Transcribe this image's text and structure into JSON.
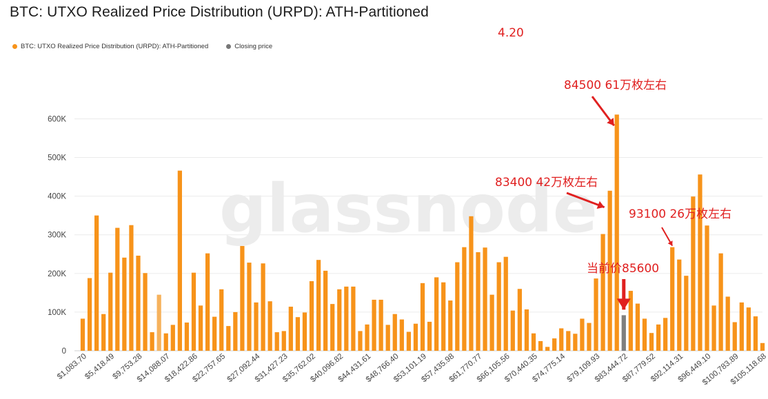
{
  "page": {
    "title": "BTC: UTXO Realized Price Distribution (URPD): ATH-Partitioned",
    "watermark": "glassnode"
  },
  "legend": [
    {
      "label": "BTC: UTXO Realized Price Distribution (URPD): ATH-Partitioned",
      "color": "#f7931a"
    },
    {
      "label": "Closing price",
      "color": "#777777"
    }
  ],
  "annotations": [
    {
      "text": "4.20"
    },
    {
      "text": "84500 61万枚左右"
    },
    {
      "text": "83400 42万枚左右"
    },
    {
      "text": "93100 26万枚左右"
    },
    {
      "text": "当前价85600"
    }
  ],
  "chart_data": {
    "type": "bar",
    "title": "BTC: UTXO Realized Price Distribution (URPD): ATH-Partitioned",
    "ylim": [
      0,
      640000
    ],
    "y_ticks": [
      0,
      100000,
      200000,
      300000,
      400000,
      500000,
      600000
    ],
    "y_tick_labels": [
      "0",
      "100K",
      "200K",
      "300K",
      "400K",
      "500K",
      "600K"
    ],
    "x_tick_labels": [
      "$1,083.70",
      "$5,418.49",
      "$9,753.28",
      "$14,088.07",
      "$18,422.86",
      "$22,757.65",
      "$27,092.44",
      "$31,427.23",
      "$35,762.02",
      "$40,096.82",
      "$44,431.61",
      "$48,766.40",
      "$53,101.19",
      "$57,435.98",
      "$61,770.77",
      "$66,105.56",
      "$70,440.35",
      "$74,775.14",
      "$79,109.93",
      "$83,444.72",
      "$87,779.52",
      "$92,114.31",
      "$96,449.10",
      "$100,783.89",
      "$105,118.68"
    ],
    "grid": true,
    "colors": {
      "bar": "#f7931a",
      "highlight_bar": "#f6b25c",
      "closing_bar": "#7f7f7f"
    },
    "series": [
      {
        "name": "BTC: UTXO Realized Price Distribution (URPD): ATH-Partitioned",
        "values": [
          83000,
          188000,
          350000,
          95000,
          202000,
          318000,
          241000,
          325000,
          246000,
          201000,
          48000,
          145000,
          45000,
          67000,
          466000,
          73000,
          202000,
          117000,
          252000,
          88000,
          159000,
          64000,
          100000,
          271000,
          228000,
          125000,
          226000,
          128000,
          48000,
          51000,
          114000,
          87000,
          99000,
          180000,
          235000,
          207000,
          121000,
          159000,
          166000,
          166000,
          51000,
          68000,
          132000,
          132000,
          67000,
          95000,
          81000,
          49000,
          70000,
          175000,
          75000,
          190000,
          177000,
          130000,
          229000,
          268000,
          348000,
          255000,
          267000,
          145000,
          229000,
          243000,
          104000,
          160000,
          107000,
          45000,
          25000,
          10000,
          32000,
          58000,
          51000,
          44000,
          83000,
          72000,
          187000,
          302000,
          414000,
          611000,
          92000,
          155000,
          122000,
          83000,
          46000,
          68000,
          85000,
          268000,
          236000,
          194000,
          399000,
          456000,
          324000,
          117000,
          252000,
          140000,
          74000,
          125000,
          112000,
          89000,
          20000
        ]
      },
      {
        "name": "Closing price",
        "values": [
          null,
          null,
          null,
          null,
          null,
          null,
          null,
          null,
          null,
          null,
          null,
          null,
          null,
          null,
          null,
          null,
          null,
          null,
          null,
          null,
          null,
          null,
          null,
          null,
          null,
          null,
          null,
          null,
          null,
          null,
          null,
          null,
          null,
          null,
          null,
          null,
          null,
          null,
          null,
          null,
          null,
          null,
          null,
          null,
          null,
          null,
          null,
          null,
          null,
          null,
          null,
          null,
          null,
          null,
          null,
          null,
          null,
          null,
          null,
          null,
          null,
          null,
          null,
          null,
          null,
          null,
          null,
          null,
          null,
          null,
          null,
          null,
          null,
          null,
          null,
          null,
          null,
          null,
          92000,
          null,
          null,
          null,
          null,
          null,
          null,
          null,
          null,
          null,
          null,
          null,
          null,
          null,
          null,
          null,
          null,
          null,
          null,
          null,
          null
        ]
      }
    ],
    "highlight_index": 11,
    "closing_index": 78
  }
}
